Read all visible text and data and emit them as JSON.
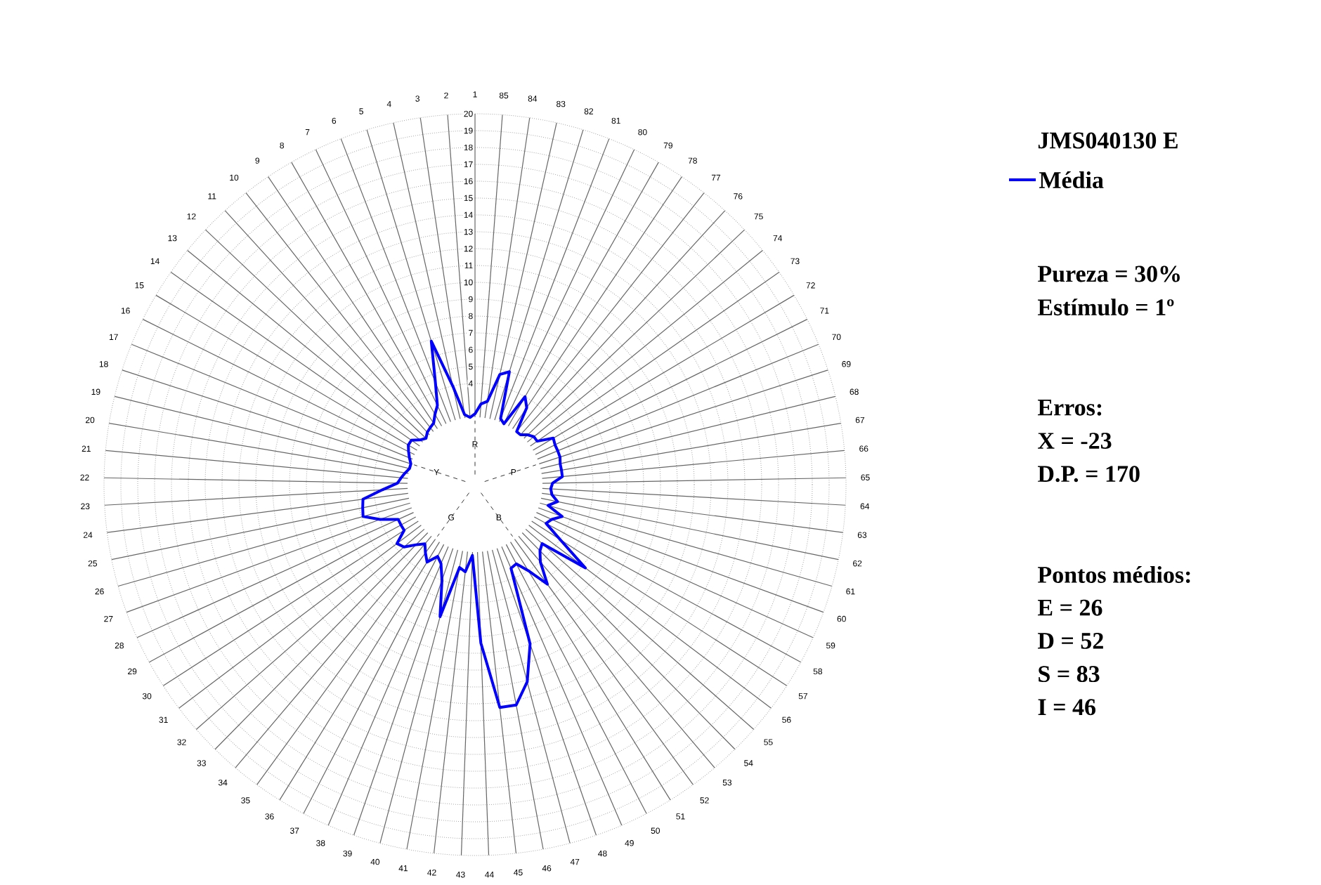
{
  "chart_data": {
    "type": "radar",
    "title": "JMS040130 E",
    "categories": [
      "1",
      "85",
      "84",
      "83",
      "82",
      "81",
      "80",
      "79",
      "78",
      "77",
      "76",
      "75",
      "74",
      "73",
      "72",
      "71",
      "70",
      "69",
      "68",
      "67",
      "66",
      "65",
      "64",
      "63",
      "62",
      "61",
      "60",
      "59",
      "58",
      "57",
      "56",
      "55",
      "54",
      "53",
      "52",
      "51",
      "50",
      "49",
      "48",
      "47",
      "46",
      "45",
      "44",
      "43",
      "42",
      "41",
      "40",
      "39",
      "38",
      "37",
      "36",
      "35",
      "34",
      "33",
      "32",
      "31",
      "30",
      "29",
      "28",
      "27",
      "26",
      "25",
      "24",
      "23",
      "22",
      "21",
      "20",
      "19",
      "18",
      "17",
      "16",
      "15",
      "14",
      "13",
      "12",
      "11",
      "10",
      "9",
      "8",
      "7",
      "6",
      "5",
      "4",
      "3",
      "2"
    ],
    "series": [
      {
        "name": "Média",
        "color": "#0000ff",
        "values": [
          2.2,
          2.8,
          3.0,
          4.7,
          5.0,
          2.2,
          2.0,
          4.0,
          3.5,
          2.0,
          2.0,
          2.3,
          2.5,
          2.5,
          3.4,
          3.3,
          3.3,
          3.3,
          3.2,
          3.2,
          3.2,
          2.6,
          2.5,
          2.6,
          3.0,
          2.5,
          3.5,
          3.0,
          2.8,
          4.0,
          6.2,
          3.3,
          3.5,
          4.0,
          5.3,
          4.0,
          3.3,
          3.4,
          8.0,
          10.1,
          11.3,
          11.3,
          7.4,
          2.2,
          3.2,
          3.0,
          6.1,
          4.0,
          3.1,
          2.8,
          3.4,
          3.0,
          2.6,
          3.0,
          3.6,
          3.8,
          3.0,
          3.0,
          3.0,
          4.0,
          4.9,
          4.8,
          4.7,
          3.5,
          2.6,
          2.4,
          2.2,
          2.0,
          2.0,
          2.2,
          2.4,
          2.6,
          2.6,
          2.2,
          2.0,
          2.2,
          2.3,
          2.4,
          2.8,
          3.2,
          4.5,
          6.9,
          4.0,
          2.2,
          2.0
        ]
      }
    ],
    "ylim": [
      -2,
      20
    ],
    "yticks": [
      4,
      5,
      6,
      7,
      8,
      9,
      10,
      11,
      12,
      13,
      14,
      15,
      16,
      17,
      18,
      19,
      20
    ],
    "grid": true,
    "legend": "right",
    "annotations": [
      "R",
      "P",
      "B",
      "G",
      "Y",
      "Pureza = 30%",
      "Estímulo = 1º",
      "Erros:",
      "X = -23",
      "D.P. = 170",
      "Pontos médios:",
      "E = 26",
      "D = 52",
      "S = 83",
      "I  = 46"
    ]
  }
}
